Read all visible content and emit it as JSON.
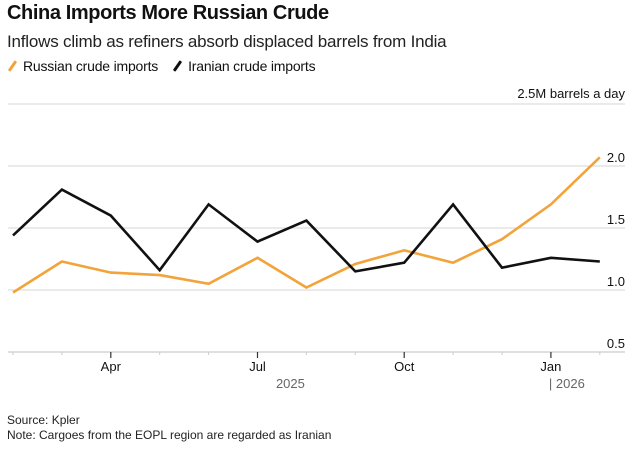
{
  "header": {
    "title": "China Imports More Russian Crude",
    "subtitle": "Inflows climb as refiners absorb displaced barrels from India"
  },
  "legend": [
    {
      "label": "Russian crude imports",
      "color": "#F2A33A"
    },
    {
      "label": "Iranian crude imports",
      "color": "#111111"
    }
  ],
  "footer": {
    "source": "Source: Kpler",
    "note": "Note: Cargoes from the EOPL region are regarded as Iranian"
  },
  "chart_data": {
    "type": "line",
    "title": "China Imports More Russian Crude",
    "subtitle": "Inflows climb as refiners absorb displaced barrels from India",
    "ylabel": "2.5M barrels a day",
    "unit_label": "2.5M barrels a day",
    "ylim": [
      0.5,
      2.5
    ],
    "yticks": [
      0.5,
      1.0,
      1.5,
      2.0,
      2.5
    ],
    "ytick_labels": [
      "0.5",
      "1.0",
      "1.5",
      "2.0"
    ],
    "grid": true,
    "legend_position": "top-left",
    "x": [
      "2025-02",
      "2025-03",
      "2025-04",
      "2025-05",
      "2025-06",
      "2025-07",
      "2025-08",
      "2025-09",
      "2025-10",
      "2025-11",
      "2025-12",
      "2026-01",
      "2026-02"
    ],
    "x_month_ticks": [
      "2025-02",
      "2025-03",
      "2025-04",
      "2025-05",
      "2025-06",
      "2025-07",
      "2025-08",
      "2025-09",
      "2025-10",
      "2025-11",
      "2025-12",
      "2026-01",
      "2026-02"
    ],
    "x_labels": [
      {
        "at": "2025-04",
        "label": "Apr"
      },
      {
        "at": "2025-07",
        "label": "Jul"
      },
      {
        "at": "2025-10",
        "label": "Oct"
      },
      {
        "at": "2026-01",
        "label": "Jan"
      }
    ],
    "year_labels": [
      {
        "at": "2025-08",
        "label": "2025"
      },
      {
        "at": "2026-01",
        "label": "| 2026"
      }
    ],
    "series": [
      {
        "name": "Russian crude imports",
        "color": "#F2A33A",
        "values": [
          0.98,
          1.23,
          1.14,
          1.12,
          1.05,
          1.26,
          1.02,
          1.21,
          1.32,
          1.22,
          1.41,
          1.69,
          2.07
        ]
      },
      {
        "name": "Iranian crude imports",
        "color": "#111111",
        "values": [
          1.44,
          1.81,
          1.6,
          1.16,
          1.69,
          1.39,
          1.56,
          1.15,
          1.22,
          1.69,
          1.18,
          1.26,
          1.23
        ]
      }
    ]
  }
}
